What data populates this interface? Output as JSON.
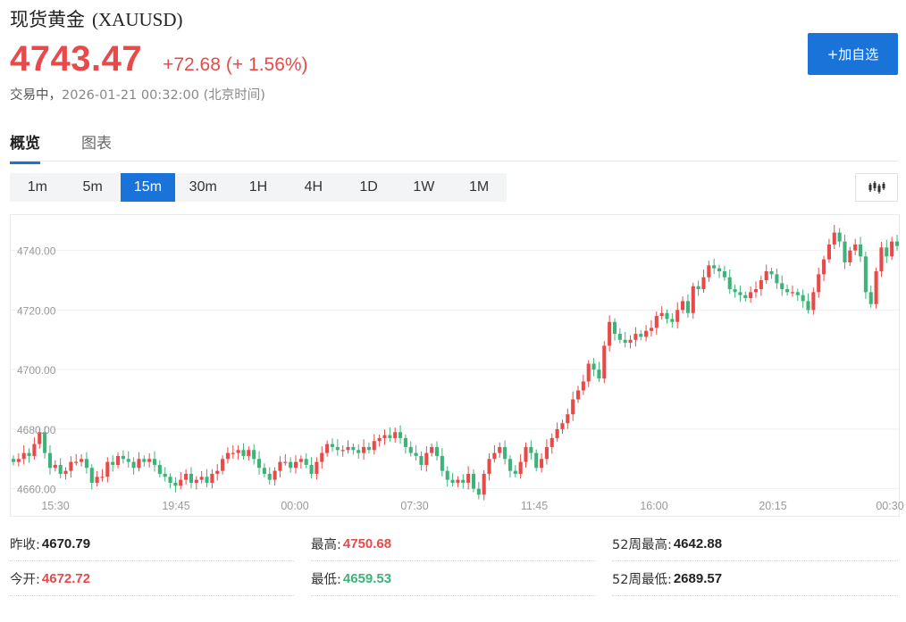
{
  "header": {
    "name": "现货黄金",
    "symbol": "(XAUUSD)",
    "price": "4743.47",
    "change": "+72.68",
    "change_pct": "(+ 1.56%)",
    "status": "交易中，",
    "timestamp": "2026-01-21 00:32:00 (北京时间)",
    "add_watch_label": "+加自选"
  },
  "tabs": [
    {
      "label": "概览",
      "active": true
    },
    {
      "label": "图表",
      "active": false
    }
  ],
  "intervals": [
    {
      "label": "1m",
      "active": false
    },
    {
      "label": "5m",
      "active": false
    },
    {
      "label": "15m",
      "active": true
    },
    {
      "label": "30m",
      "active": false
    },
    {
      "label": "1H",
      "active": false
    },
    {
      "label": "4H",
      "active": false
    },
    {
      "label": "1D",
      "active": false
    },
    {
      "label": "1W",
      "active": false
    },
    {
      "label": "1M",
      "active": false
    }
  ],
  "colors": {
    "up": "#e84a4a",
    "down": "#3db37a",
    "accent": "#1a73d9"
  },
  "chart_data": {
    "type": "candlestick",
    "x_tick_labels": [
      "15:30",
      "19:45",
      "00:00",
      "07:30",
      "11:45",
      "16:00",
      "20:15",
      "00:30"
    ],
    "y_tick_labels": [
      "4660.00",
      "4680.00",
      "4700.00",
      "4720.00",
      "4740.00"
    ],
    "y_ticks": [
      4660,
      4680,
      4700,
      4720,
      4740
    ],
    "ylim": [
      4656,
      4750.68
    ],
    "grid": true,
    "closes": [
      4669,
      4670,
      4672,
      4671,
      4675,
      4679,
      4672,
      4667,
      4668,
      4665,
      4666,
      4669,
      4669,
      4670,
      4667,
      4662,
      4664,
      4664,
      4669,
      4668,
      4671,
      4670,
      4669,
      4667,
      4670,
      4669,
      4670,
      4668,
      4665,
      4664,
      4662,
      4661,
      4663,
      4665,
      4662,
      4663,
      4664,
      4662,
      4665,
      4666,
      4670,
      4672,
      4672,
      4673,
      4671,
      4673,
      4670,
      4667,
      4665,
      4663,
      4666,
      4669,
      4669,
      4667,
      4669,
      4670,
      4668,
      4665,
      4669,
      4672,
      4675,
      4674,
      4673,
      4673,
      4674,
      4673,
      4672,
      4674,
      4673,
      4676,
      4677,
      4678,
      4677,
      4679,
      4677,
      4674,
      4672,
      4671,
      4668,
      4672,
      4674,
      4671,
      4666,
      4663,
      4662,
      4663,
      4662,
      4665,
      4660,
      4658,
      4665,
      4670,
      4672,
      4674,
      4670,
      4666,
      4665,
      4669,
      4674,
      4672,
      4667,
      4670,
      4674,
      4677,
      4680,
      4682,
      4685,
      4690,
      4693,
      4696,
      4702,
      4700,
      4697,
      4708,
      4716,
      4712,
      4710,
      4709,
      4710,
      4712,
      4711,
      4713,
      4714,
      4718,
      4719,
      4717,
      4716,
      4720,
      4723,
      4719,
      4728,
      4727,
      4731,
      4735,
      4734,
      4733,
      4731,
      4727,
      4726,
      4725,
      4724,
      4726,
      4727,
      4730,
      4733,
      4732,
      4729,
      4727,
      4726,
      4726,
      4725,
      4723,
      4720,
      4726,
      4732,
      4737,
      4742,
      4746,
      4743,
      4736,
      4740,
      4742,
      4738,
      4726,
      4722,
      4733,
      4741,
      4738,
      4743,
      4741.5
    ],
    "low": 4659.53,
    "high": 4750.68,
    "last": 4743.47
  },
  "stats": [
    {
      "label": "昨收:",
      "value": "4670.79",
      "tone": "neutral"
    },
    {
      "label": "最高:",
      "value": "4750.68",
      "tone": "up"
    },
    {
      "label": "52周最高:",
      "value": "4642.88",
      "tone": "neutral"
    },
    {
      "label": "今开:",
      "value": "4672.72",
      "tone": "up"
    },
    {
      "label": "最低:",
      "value": "4659.53",
      "tone": "down"
    },
    {
      "label": "52周最低:",
      "value": "2689.57",
      "tone": "neutral"
    }
  ]
}
